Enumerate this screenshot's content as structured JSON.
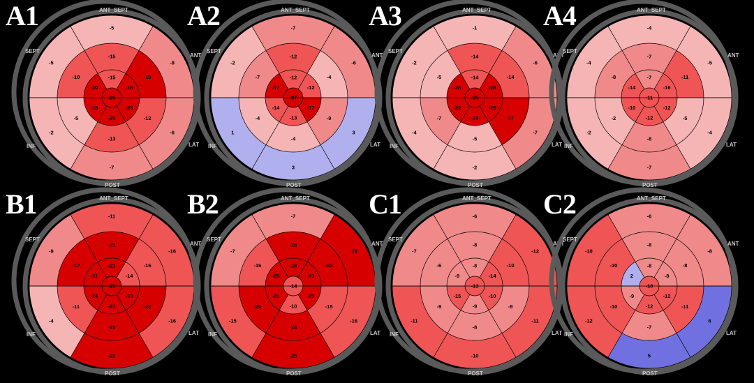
{
  "orientation_labels": {
    "top": "ANT_SEPT",
    "upper_left": "SEPT",
    "upper_right": "ANT",
    "lower_left": "INF",
    "lower_right": "LAT",
    "bottom": "POST"
  },
  "colors": {
    "strong_red": "#d60000",
    "mid_red": "#f05555",
    "light_red": "#f08a8a",
    "pale_red": "#f6b5b5",
    "blue": "#b0b0ee",
    "deep_blue": "#7070e0",
    "ring_gray": "#5a5a5a",
    "grid": "#000000"
  },
  "panels": [
    {
      "label": "A1",
      "center": -29,
      "apex": [
        -15,
        -18,
        -23,
        -26,
        -18,
        -20
      ],
      "mid": [
        -15,
        -18,
        -12,
        -13,
        -5,
        -10
      ],
      "basal": [
        -5,
        -8,
        -6,
        -7,
        -2,
        -5
      ]
    },
    {
      "label": "A2",
      "center": -37,
      "apex": [
        -12,
        -12,
        -17,
        -13,
        -14,
        -17
      ],
      "mid": [
        -12,
        -4,
        -9,
        -4,
        -4,
        -7
      ],
      "basal": [
        -7,
        -6,
        3,
        3,
        1,
        -2
      ]
    },
    {
      "label": "A3",
      "center": -25,
      "apex": [
        -14,
        -28,
        -25,
        -19,
        -22,
        -28
      ],
      "mid": [
        -14,
        -14,
        -17,
        -5,
        -7,
        -5
      ],
      "basal": [
        -1,
        -6,
        -7,
        -2,
        -4,
        -2
      ]
    },
    {
      "label": "A4",
      "center": -11,
      "apex": [
        -7,
        -16,
        -12,
        -12,
        -10,
        -14
      ],
      "mid": [
        -7,
        -11,
        -5,
        -8,
        -2,
        -8
      ],
      "basal": [
        -4,
        -5,
        -4,
        -7,
        -2,
        -4
      ]
    },
    {
      "label": "B1",
      "center": -29,
      "apex": [
        -21,
        -14,
        -33,
        -23,
        -24,
        -31
      ],
      "mid": [
        -21,
        -16,
        -23,
        -19,
        -11,
        -17
      ],
      "basal": [
        -11,
        -16,
        -16,
        -23,
        -4,
        -9
      ]
    },
    {
      "label": "B2",
      "center": -14,
      "apex": [
        -18,
        -31,
        -23,
        -10,
        -31,
        -29
      ],
      "mid": [
        -18,
        -23,
        -15,
        -18,
        -20,
        -16
      ],
      "basal": [
        -7,
        -19,
        -16,
        -25,
        -15,
        -7
      ]
    },
    {
      "label": "C1",
      "center": -13,
      "apex": [
        -8,
        -14,
        -10,
        -9,
        -15,
        -9
      ],
      "mid": [
        -8,
        -10,
        -9,
        -8,
        -9,
        -6
      ],
      "basal": [
        -6,
        -12,
        -11,
        -10,
        -11,
        -7
      ]
    },
    {
      "label": "C2",
      "center": -10,
      "apex": [
        -8,
        -8,
        -12,
        -12,
        -9,
        2
      ],
      "mid": [
        -8,
        -8,
        -11,
        -7,
        -10,
        -10
      ],
      "basal": [
        -6,
        -8,
        6,
        5,
        -12,
        -10
      ]
    }
  ]
}
